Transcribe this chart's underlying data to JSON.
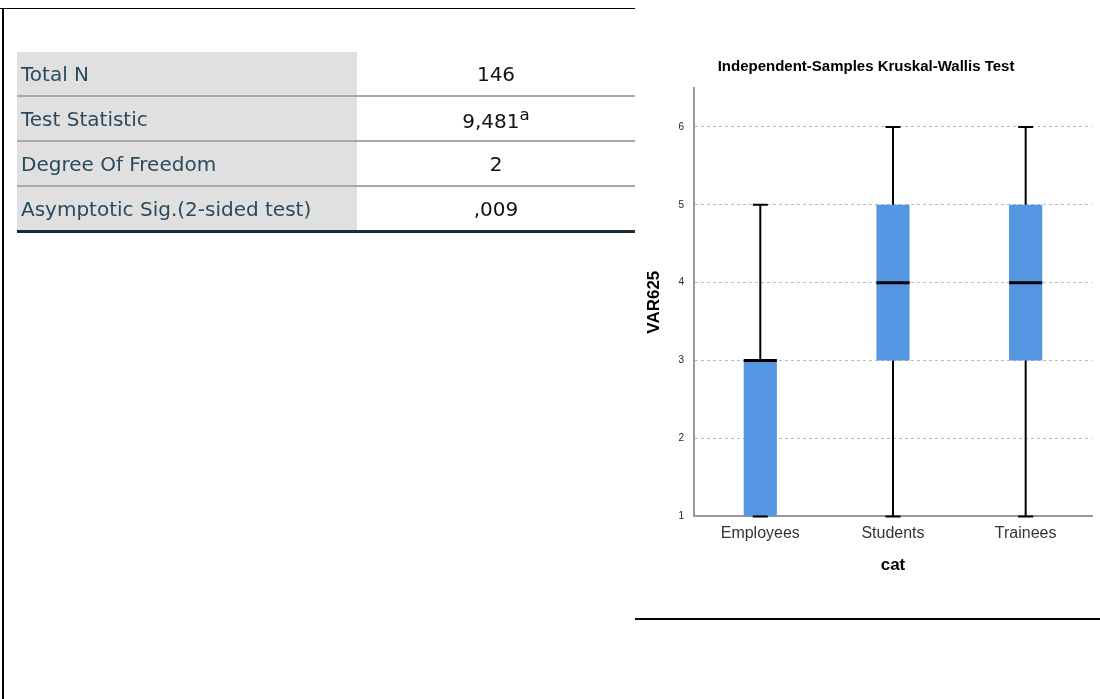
{
  "chart_data": [
    {
      "type": "other",
      "annotations": [
        "Total N",
        "146",
        "Test Statistic",
        "9,481$^{a}$",
        "Degree Of Freedom",
        "2",
        "Asymptotic Sig.(2-sided test)",
        ",009"
      ]
    },
    {
      "type": "box",
      "title": "Independent-Samples Kruskal-Wallis Test",
      "xlabel": "cat",
      "ylabel": "VAR625",
      "categories": [
        "Employees",
        "Students",
        "Trainees"
      ],
      "color": "#5596e3",
      "boxes": [
        {
          "low": 1,
          "q1": 1,
          "median": 3,
          "q3": 3,
          "high": 5
        },
        {
          "low": 1,
          "q1": 3,
          "median": 4,
          "q3": 5,
          "high": 6
        },
        {
          "low": 1,
          "q1": 3,
          "median": 4,
          "q3": 5,
          "high": 6
        }
      ],
      "ylim": [
        1,
        6.5
      ],
      "yticks": [
        1,
        2,
        3,
        4,
        5,
        6
      ],
      "grid": "y",
      "legend": false
    }
  ]
}
